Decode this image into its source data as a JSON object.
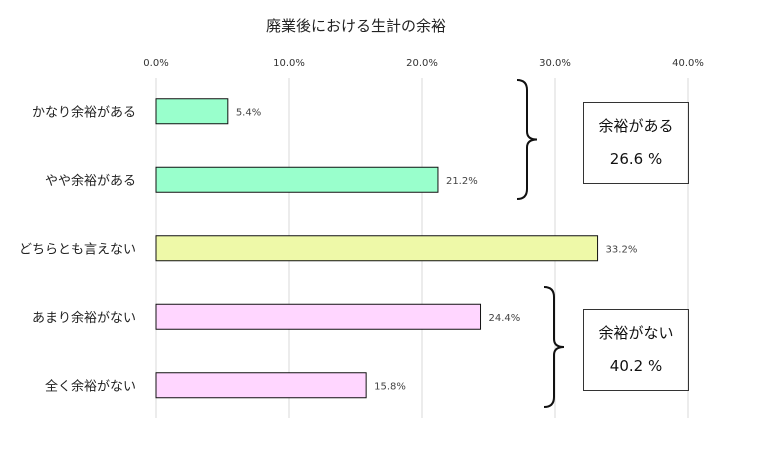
{
  "chart_data": {
    "type": "bar",
    "orientation": "horizontal",
    "title": "廃業後における生計の余裕",
    "categories": [
      "かなり余裕がある",
      "やや余裕がある",
      "どちらとも言えない",
      "あまり余裕がない",
      "全く余裕がない"
    ],
    "values": [
      5.4,
      21.2,
      33.2,
      24.4,
      15.8
    ],
    "value_labels": [
      "5.4%",
      "21.2%",
      "33.2%",
      "24.4%",
      "15.8%"
    ],
    "colors": [
      "#99ffcc",
      "#99ffcc",
      "#eef9a8",
      "#ffd6ff",
      "#ffd6ff"
    ],
    "xlim": [
      0,
      40
    ],
    "xticks": [
      "0.0%",
      "10.0%",
      "20.0%",
      "30.0%",
      "40.0%"
    ],
    "grid": true,
    "axis_position": "top",
    "groups": [
      {
        "label": "余裕がある",
        "value": "26.6 %",
        "members": [
          0,
          1
        ],
        "color": "#e2fbe9"
      },
      {
        "label": "余裕がない",
        "value": "40.2 %",
        "members": [
          3,
          4
        ],
        "color": "#ffeafc"
      }
    ]
  }
}
